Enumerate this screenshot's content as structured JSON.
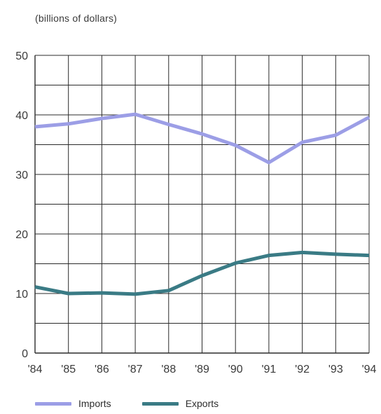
{
  "chart_data": {
    "type": "line",
    "unit_label": "(billions of dollars)",
    "categories": [
      "'84",
      "'85",
      "'86",
      "'87",
      "'88",
      "'89",
      "'90",
      "'91",
      "'92",
      "'93",
      "'94"
    ],
    "series": [
      {
        "name": "Imports",
        "color": "#9c9ee6",
        "values": [
          38.0,
          38.5,
          39.4,
          40.1,
          38.4,
          36.8,
          34.9,
          32.0,
          35.4,
          36.6,
          39.6
        ]
      },
      {
        "name": "Exports",
        "color": "#3a7b85",
        "values": [
          11.1,
          10.0,
          10.1,
          9.9,
          10.5,
          13.0,
          15.1,
          16.4,
          16.9,
          16.6,
          16.4
        ]
      }
    ],
    "ylim": [
      0,
      50
    ],
    "y_ticks": [
      "0",
      "10",
      "20",
      "30",
      "40",
      "50"
    ],
    "grid": true,
    "legend_position": "bottom-left"
  }
}
